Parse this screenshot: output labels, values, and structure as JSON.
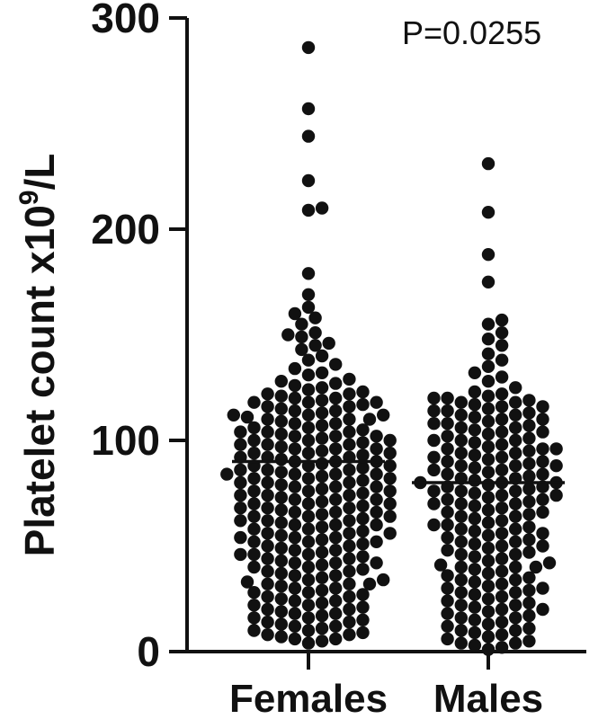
{
  "chart_data": {
    "type": "scatter",
    "subtype": "beeswarm",
    "title": "",
    "xlabel": "",
    "ylabel": {
      "prefix": "Platelet count x10",
      "superscript": "9",
      "suffix": "/L"
    },
    "annotation": "P=0.0255",
    "categories": [
      "Females",
      "Males"
    ],
    "ylim": [
      0,
      300
    ],
    "yticks": [
      "0",
      "100",
      "200",
      "300"
    ],
    "grid": false,
    "legend": "none",
    "median_lines": [
      90,
      80
    ],
    "series": [
      {
        "values": [
          286,
          257,
          244,
          223,
          210,
          209,
          179,
          169,
          163,
          160,
          158,
          155,
          151,
          150,
          149,
          146,
          145,
          143,
          140,
          138,
          136,
          134,
          132,
          131,
          129,
          128,
          127,
          126,
          125,
          124,
          123,
          122,
          121,
          120,
          119,
          118,
          117,
          116,
          115,
          114,
          113,
          112,
          111,
          110,
          109,
          108,
          107,
          106,
          105,
          104,
          103,
          102,
          101,
          100,
          99,
          98,
          97,
          96,
          95,
          94,
          93,
          92,
          91,
          90,
          89,
          88,
          87,
          86,
          85,
          84,
          83,
          82,
          81,
          80,
          79,
          78,
          77,
          76,
          75,
          74,
          73,
          72,
          71,
          70,
          69,
          68,
          67,
          66,
          65,
          64,
          63,
          62,
          61,
          60,
          59,
          58,
          57,
          56,
          55,
          54,
          53,
          52,
          51,
          50,
          49,
          48,
          47,
          46,
          45,
          44,
          43,
          42,
          41,
          40,
          39,
          38,
          37,
          36,
          35,
          34,
          33,
          32,
          31,
          30,
          29,
          28,
          27,
          26,
          25,
          24,
          23,
          22,
          21,
          20,
          19,
          18,
          17,
          16,
          15,
          14,
          13,
          12,
          11,
          10,
          9,
          8,
          7,
          6,
          5,
          4,
          118,
          114,
          110,
          106,
          102,
          98,
          94,
          90,
          86,
          82,
          78,
          74,
          70,
          66,
          62,
          58,
          54,
          50,
          46,
          42,
          38,
          34,
          30,
          26,
          22,
          18,
          14,
          10,
          6,
          120,
          112,
          104,
          96,
          88,
          80,
          72,
          64,
          56,
          48,
          40,
          32,
          24,
          16,
          8,
          116,
          108,
          100,
          92,
          84,
          76,
          68,
          60,
          52,
          44,
          36,
          28,
          20,
          12,
          122,
          102,
          92,
          82,
          72,
          62,
          52,
          42,
          32,
          96,
          86,
          76,
          66,
          56,
          46,
          84,
          74,
          64,
          54,
          80,
          70,
          60,
          88,
          78,
          68,
          94,
          84,
          98,
          90,
          104,
          110,
          112,
          118,
          100
        ]
      },
      {
        "values": [
          231,
          208,
          188,
          175,
          157,
          155,
          151,
          148,
          145,
          141,
          138,
          135,
          132,
          130,
          128,
          125,
          123,
          122,
          121,
          120,
          119,
          118,
          117,
          116,
          115,
          114,
          113,
          112,
          111,
          110,
          109,
          108,
          107,
          106,
          105,
          104,
          103,
          102,
          101,
          100,
          99,
          98,
          97,
          96,
          95,
          94,
          93,
          92,
          91,
          90,
          89,
          88,
          87,
          86,
          85,
          84,
          83,
          82,
          81,
          80,
          79,
          78,
          77,
          76,
          75,
          74,
          73,
          72,
          71,
          70,
          69,
          68,
          67,
          66,
          65,
          64,
          63,
          62,
          61,
          60,
          59,
          58,
          57,
          56,
          55,
          54,
          53,
          52,
          51,
          50,
          49,
          48,
          47,
          46,
          45,
          44,
          43,
          42,
          41,
          40,
          39,
          38,
          37,
          36,
          35,
          34,
          33,
          32,
          31,
          30,
          29,
          28,
          27,
          26,
          25,
          24,
          23,
          22,
          21,
          20,
          19,
          18,
          17,
          16,
          15,
          14,
          13,
          12,
          11,
          10,
          9,
          8,
          7,
          6,
          5,
          4,
          3,
          2,
          1,
          118,
          112,
          106,
          100,
          94,
          88,
          82,
          76,
          70,
          64,
          58,
          52,
          46,
          40,
          34,
          28,
          22,
          16,
          10,
          4,
          120,
          110,
          100,
          90,
          80,
          70,
          60,
          50,
          40,
          30,
          20,
          114,
          96,
          86,
          76,
          66,
          56,
          92,
          84,
          78,
          72,
          88,
          80,
          74,
          96,
          104,
          108,
          116
        ]
      }
    ]
  }
}
